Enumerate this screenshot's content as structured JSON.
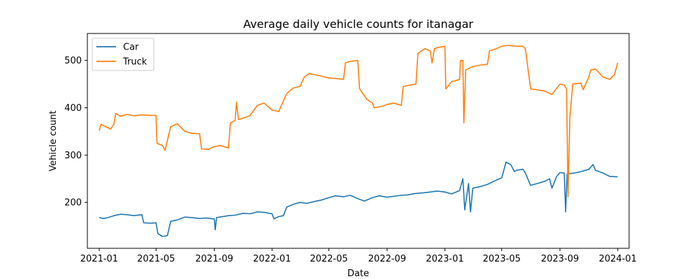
{
  "chart_data": {
    "type": "line",
    "title": "Average daily vehicle counts for itanagar",
    "xlabel": "Date",
    "ylabel": "Vehicle count",
    "xlim": [
      "2020-12-07",
      "2024-01-25"
    ],
    "ylim": [
      103,
      557
    ],
    "x_ticks": [
      "2021-01",
      "2021-05",
      "2021-09",
      "2022-01",
      "2022-05",
      "2022-09",
      "2023-01",
      "2023-05",
      "2023-09",
      "2024-01"
    ],
    "x_tick_dates": [
      "2021-01-01",
      "2021-05-01",
      "2021-09-01",
      "2022-01-01",
      "2022-05-01",
      "2022-09-01",
      "2023-01-01",
      "2023-05-01",
      "2023-09-01",
      "2024-01-01"
    ],
    "y_ticks": [
      200,
      300,
      400,
      500
    ],
    "grid": false,
    "legend_position": "upper-left",
    "series": [
      {
        "name": "Car",
        "color": "#1f77b4",
        "points": [
          [
            "2021-01-01",
            168
          ],
          [
            "2021-01-10",
            166
          ],
          [
            "2021-01-20",
            168
          ],
          [
            "2021-02-01",
            172
          ],
          [
            "2021-02-15",
            175
          ],
          [
            "2021-03-01",
            174
          ],
          [
            "2021-03-15",
            172
          ],
          [
            "2021-04-01",
            174
          ],
          [
            "2021-04-05",
            157
          ],
          [
            "2021-04-20",
            156
          ],
          [
            "2021-05-01",
            157
          ],
          [
            "2021-05-05",
            134
          ],
          [
            "2021-05-15",
            128
          ],
          [
            "2021-05-25",
            130
          ],
          [
            "2021-06-01",
            160
          ],
          [
            "2021-06-15",
            163
          ],
          [
            "2021-07-01",
            169
          ],
          [
            "2021-07-15",
            168
          ],
          [
            "2021-08-01",
            166
          ],
          [
            "2021-08-15",
            167
          ],
          [
            "2021-09-01",
            165
          ],
          [
            "2021-09-03",
            142
          ],
          [
            "2021-09-06",
            168
          ],
          [
            "2021-10-01",
            172
          ],
          [
            "2021-10-15",
            173
          ],
          [
            "2021-11-01",
            177
          ],
          [
            "2021-11-15",
            176
          ],
          [
            "2021-12-01",
            180
          ],
          [
            "2021-12-15",
            179
          ],
          [
            "2022-01-01",
            176
          ],
          [
            "2022-01-05",
            165
          ],
          [
            "2022-01-15",
            170
          ],
          [
            "2022-01-25",
            172
          ],
          [
            "2022-02-01",
            190
          ],
          [
            "2022-02-15",
            196
          ],
          [
            "2022-03-01",
            200
          ],
          [
            "2022-03-15",
            198
          ],
          [
            "2022-04-01",
            202
          ],
          [
            "2022-04-15",
            205
          ],
          [
            "2022-05-01",
            210
          ],
          [
            "2022-05-15",
            214
          ],
          [
            "2022-06-01",
            212
          ],
          [
            "2022-06-15",
            215
          ],
          [
            "2022-07-01",
            208
          ],
          [
            "2022-07-15",
            203
          ],
          [
            "2022-08-01",
            210
          ],
          [
            "2022-08-15",
            214
          ],
          [
            "2022-09-01",
            211
          ],
          [
            "2022-09-15",
            213
          ],
          [
            "2022-10-01",
            215
          ],
          [
            "2022-10-15",
            216
          ],
          [
            "2022-11-01",
            219
          ],
          [
            "2022-11-15",
            220
          ],
          [
            "2022-12-01",
            222
          ],
          [
            "2022-12-15",
            224
          ],
          [
            "2023-01-01",
            222
          ],
          [
            "2023-01-15",
            218
          ],
          [
            "2023-02-01",
            225
          ],
          [
            "2023-02-08",
            250
          ],
          [
            "2023-02-12",
            184
          ],
          [
            "2023-02-20",
            240
          ],
          [
            "2023-02-24",
            180
          ],
          [
            "2023-03-01",
            230
          ],
          [
            "2023-03-15",
            233
          ],
          [
            "2023-04-01",
            238
          ],
          [
            "2023-04-15",
            245
          ],
          [
            "2023-05-01",
            252
          ],
          [
            "2023-05-10",
            285
          ],
          [
            "2023-05-20",
            280
          ],
          [
            "2023-05-28",
            265
          ],
          [
            "2023-06-01",
            268
          ],
          [
            "2023-06-15",
            270
          ],
          [
            "2023-06-20",
            262
          ],
          [
            "2023-07-01",
            236
          ],
          [
            "2023-07-15",
            240
          ],
          [
            "2023-08-01",
            245
          ],
          [
            "2023-08-10",
            250
          ],
          [
            "2023-08-15",
            230
          ],
          [
            "2023-08-25",
            255
          ],
          [
            "2023-09-01",
            263
          ],
          [
            "2023-09-10",
            262
          ],
          [
            "2023-09-13",
            180
          ],
          [
            "2023-09-16",
            260
          ],
          [
            "2023-10-01",
            262
          ],
          [
            "2023-10-15",
            265
          ],
          [
            "2023-11-01",
            270
          ],
          [
            "2023-11-10",
            280
          ],
          [
            "2023-11-15",
            268
          ],
          [
            "2023-12-01",
            262
          ],
          [
            "2023-12-15",
            255
          ],
          [
            "2024-01-01",
            254
          ]
        ]
      },
      {
        "name": "Truck",
        "color": "#ff7f0e",
        "points": [
          [
            "2021-01-01",
            352
          ],
          [
            "2021-01-05",
            365
          ],
          [
            "2021-01-15",
            360
          ],
          [
            "2021-01-25",
            355
          ],
          [
            "2021-02-01",
            365
          ],
          [
            "2021-02-05",
            388
          ],
          [
            "2021-02-15",
            382
          ],
          [
            "2021-03-01",
            386
          ],
          [
            "2021-03-15",
            383
          ],
          [
            "2021-04-01",
            385
          ],
          [
            "2021-04-20",
            384
          ],
          [
            "2021-05-01",
            384
          ],
          [
            "2021-05-03",
            325
          ],
          [
            "2021-05-15",
            320
          ],
          [
            "2021-05-20",
            310
          ],
          [
            "2021-06-01",
            360
          ],
          [
            "2021-06-15",
            366
          ],
          [
            "2021-07-01",
            350
          ],
          [
            "2021-07-15",
            346
          ],
          [
            "2021-08-01",
            345
          ],
          [
            "2021-08-05",
            313
          ],
          [
            "2021-08-20",
            312
          ],
          [
            "2021-09-01",
            318
          ],
          [
            "2021-09-15",
            320
          ],
          [
            "2021-10-01",
            315
          ],
          [
            "2021-10-05",
            368
          ],
          [
            "2021-10-15",
            373
          ],
          [
            "2021-10-18",
            412
          ],
          [
            "2021-10-22",
            375
          ],
          [
            "2021-11-01",
            378
          ],
          [
            "2021-11-15",
            383
          ],
          [
            "2021-12-01",
            405
          ],
          [
            "2021-12-15",
            410
          ],
          [
            "2022-01-01",
            395
          ],
          [
            "2022-01-15",
            392
          ],
          [
            "2022-02-01",
            430
          ],
          [
            "2022-02-15",
            442
          ],
          [
            "2022-03-01",
            445
          ],
          [
            "2022-03-10",
            465
          ],
          [
            "2022-03-20",
            472
          ],
          [
            "2022-04-01",
            470
          ],
          [
            "2022-04-15",
            467
          ],
          [
            "2022-05-01",
            463
          ],
          [
            "2022-05-15",
            462
          ],
          [
            "2022-06-01",
            460
          ],
          [
            "2022-06-05",
            495
          ],
          [
            "2022-06-15",
            498
          ],
          [
            "2022-07-01",
            500
          ],
          [
            "2022-07-05",
            440
          ],
          [
            "2022-07-20",
            418
          ],
          [
            "2022-08-01",
            410
          ],
          [
            "2022-08-05",
            400
          ],
          [
            "2022-08-20",
            403
          ],
          [
            "2022-09-01",
            407
          ],
          [
            "2022-09-15",
            410
          ],
          [
            "2022-10-01",
            405
          ],
          [
            "2022-10-05",
            445
          ],
          [
            "2022-10-20",
            448
          ],
          [
            "2022-11-01",
            450
          ],
          [
            "2022-11-05",
            515
          ],
          [
            "2022-11-20",
            525
          ],
          [
            "2022-12-01",
            520
          ],
          [
            "2022-12-05",
            495
          ],
          [
            "2022-12-10",
            525
          ],
          [
            "2022-12-20",
            528
          ],
          [
            "2023-01-01",
            530
          ],
          [
            "2023-01-03",
            440
          ],
          [
            "2023-01-15",
            455
          ],
          [
            "2023-02-01",
            460
          ],
          [
            "2023-02-03",
            500
          ],
          [
            "2023-02-08",
            500
          ],
          [
            "2023-02-10",
            368
          ],
          [
            "2023-02-14",
            480
          ],
          [
            "2023-03-01",
            487
          ],
          [
            "2023-03-15",
            490
          ],
          [
            "2023-04-01",
            492
          ],
          [
            "2023-04-05",
            520
          ],
          [
            "2023-04-20",
            525
          ],
          [
            "2023-05-01",
            530
          ],
          [
            "2023-05-15",
            532
          ],
          [
            "2023-06-01",
            530
          ],
          [
            "2023-06-15",
            530
          ],
          [
            "2023-06-20",
            525
          ],
          [
            "2023-07-01",
            440
          ],
          [
            "2023-07-15",
            438
          ],
          [
            "2023-08-01",
            435
          ],
          [
            "2023-08-15",
            428
          ],
          [
            "2023-09-01",
            450
          ],
          [
            "2023-09-10",
            448
          ],
          [
            "2023-09-15",
            440
          ],
          [
            "2023-09-18",
            212
          ],
          [
            "2023-09-22",
            380
          ],
          [
            "2023-09-28",
            450
          ],
          [
            "2023-10-15",
            452
          ],
          [
            "2023-10-20",
            438
          ],
          [
            "2023-11-01",
            465
          ],
          [
            "2023-11-05",
            480
          ],
          [
            "2023-11-15",
            482
          ],
          [
            "2023-12-01",
            465
          ],
          [
            "2023-12-15",
            460
          ],
          [
            "2023-12-25",
            470
          ],
          [
            "2024-01-01",
            495
          ]
        ]
      }
    ]
  }
}
